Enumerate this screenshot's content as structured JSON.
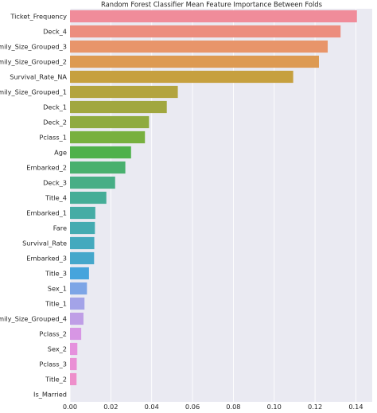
{
  "chart_data": {
    "type": "bar",
    "orientation": "horizontal",
    "title": "Random Forest Classifier Mean Feature Importance Between Folds",
    "xlabel": "",
    "ylabel": "",
    "xlim": [
      0,
      0.148
    ],
    "xticks": [
      "0.00",
      "0.02",
      "0.04",
      "0.06",
      "0.08",
      "0.10",
      "0.12",
      "0.14"
    ],
    "grid": true,
    "background": "#eaeaf2",
    "categories": [
      "Ticket_Frequency",
      "Deck_4",
      "Family_Size_Grouped_3",
      "Family_Size_Grouped_2",
      "Survival_Rate_NA",
      "Family_Size_Grouped_1",
      "Deck_1",
      "Deck_2",
      "Pclass_1",
      "Age",
      "Embarked_2",
      "Deck_3",
      "Title_4",
      "Embarked_1",
      "Fare",
      "Survival_Rate",
      "Embarked_3",
      "Title_3",
      "Sex_1",
      "Title_1",
      "Family_Size_Grouped_4",
      "Pclass_2",
      "Sex_2",
      "Pclass_3",
      "Title_2",
      "Is_Married"
    ],
    "values": [
      0.1405,
      0.1325,
      0.1262,
      0.1219,
      0.1093,
      0.0528,
      0.0474,
      0.0387,
      0.0367,
      0.0299,
      0.0271,
      0.0221,
      0.0178,
      0.0124,
      0.0122,
      0.0119,
      0.0118,
      0.0093,
      0.0083,
      0.0071,
      0.0066,
      0.0055,
      0.0036,
      0.0033,
      0.0032,
      0.0
    ],
    "colors": [
      "#f08c9a",
      "#ec8d7e",
      "#e8956a",
      "#dd9a52",
      "#c6a03f",
      "#b3a43f",
      "#a1a73f",
      "#8fab3f",
      "#78b03f",
      "#4fb14b",
      "#49b06e",
      "#47ae86",
      "#45ad97",
      "#45aca5",
      "#44abb1",
      "#44a9be",
      "#45a7cb",
      "#46a4dc",
      "#7da5e6",
      "#a3a3e8",
      "#bf9ee6",
      "#d796e4",
      "#e591dd",
      "#ea8fd5",
      "#ee8fcb",
      "#f18fc0"
    ]
  }
}
